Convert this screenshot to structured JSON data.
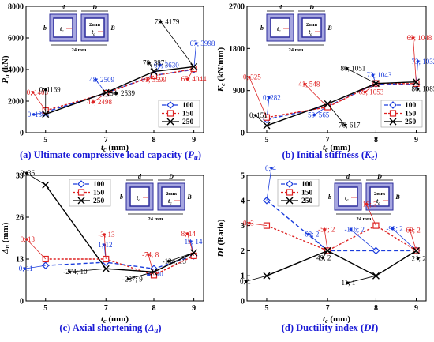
{
  "colors": {
    "s100": "#1a3cdc",
    "s150": "#dd2222",
    "s250": "#000000",
    "caption": "#1a1ad6",
    "inset_outer": "#a6a6e0",
    "inset_inner": "#2a2a9a",
    "inset_fill": "#c9ccee"
  },
  "inset": {
    "d": "d",
    "D": "D",
    "b": "b",
    "B": "B",
    "tc": "t",
    "tc_sub": "c",
    "two_mm": "2mm",
    "width": "24 mm"
  },
  "legend": [
    "100",
    "150",
    "250"
  ],
  "chart_data": [
    {
      "type": "line",
      "caption": "(a) Ultimate compressive load capacity (",
      "caption_var": "P",
      "caption_sub": "u",
      "caption_end": ")",
      "xlabel": "t",
      "xlabel_sub": "c",
      "xlabel_unit": " (mm)",
      "ylabel": "P",
      "ylabel_sub": "u",
      "ylabel_unit": " (kN)",
      "x": [
        5,
        7,
        8,
        9
      ],
      "ylim": [
        0,
        8000
      ],
      "yticks": [
        0,
        2000,
        4000,
        6000,
        8000
      ],
      "ytick_labels": [
        "0",
        "2000",
        "4000",
        "6000",
        "8000"
      ],
      "series": [
        {
          "name": "100",
          "values": [
            1306,
            2509,
            3630,
            3998
          ],
          "labels": [
            "0; 1306",
            "48; 2509",
            "64; 3630",
            "67; 3998"
          ]
        },
        {
          "name": "150",
          "values": [
            1403,
            2498,
            3599,
            4044
          ],
          "labels": [
            "0; 1403",
            "44; 2498",
            "61; 3599",
            "65; 4044"
          ]
        },
        {
          "name": "250",
          "values": [
            1169,
            2539,
            3871,
            4179
          ],
          "labels": [
            "0; 1169",
            "54; 2539",
            "70; 3871",
            "72; 4179"
          ]
        }
      ]
    },
    {
      "type": "line",
      "caption": "(b) Initial stiffness (",
      "caption_var": "K",
      "caption_sub": "e",
      "caption_end": ")",
      "xlabel": "t",
      "xlabel_sub": "c",
      "xlabel_unit": " (mm)",
      "ylabel": "K",
      "ylabel_sub": "e",
      "ylabel_unit": " (kN/mm)",
      "x": [
        5,
        7,
        8,
        9
      ],
      "ylim": [
        0,
        2700
      ],
      "yticks": [
        0,
        900,
        1800,
        2700
      ],
      "ytick_labels": [
        "0",
        "900",
        "1800",
        "2700"
      ],
      "series": [
        {
          "name": "100",
          "values": [
            282,
            565,
            1043,
            1032
          ],
          "labels": [
            "0; 282",
            "50; 565",
            "73; 1043",
            "73; 1032"
          ]
        },
        {
          "name": "150",
          "values": [
            325,
            548,
            1053,
            1048
          ],
          "labels": [
            "0; 325",
            "41; 548",
            "69; 1053",
            "69; 1048"
          ]
        },
        {
          "name": "250",
          "values": [
            151,
            617,
            1051,
            1085
          ],
          "labels": [
            "0; 151",
            "76; 617",
            "86; 1051",
            "86; 1085"
          ]
        }
      ]
    },
    {
      "type": "line",
      "caption": "(c) Axial shortening (",
      "caption_var": "Δ",
      "caption_sub": "u",
      "caption_end": ")",
      "xlabel": "t",
      "xlabel_sub": "c",
      "xlabel_unit": " (mm)",
      "ylabel": "Δ",
      "ylabel_sub": "u",
      "ylabel_unit": " (mm)",
      "x": [
        5,
        7,
        8,
        9
      ],
      "ylim": [
        0,
        39
      ],
      "yticks": [
        0,
        13,
        26,
        39
      ],
      "ytick_labels": [
        "0",
        "13",
        "26",
        "39"
      ],
      "series": [
        {
          "name": "100",
          "values": [
            11,
            12,
            10,
            14
          ],
          "labels": [
            "0; 11",
            "1; 12",
            "-12; 10",
            "19; 14"
          ]
        },
        {
          "name": "150",
          "values": [
            13,
            13,
            8,
            14
          ],
          "labels": [
            "0; 13",
            "-3; 13",
            "-74; 8",
            "8; 14"
          ]
        },
        {
          "name": "250",
          "values": [
            36,
            10,
            9,
            15
          ],
          "labels": [
            "0; 36",
            "-274; 10",
            "-287; 9",
            "-134; 15"
          ]
        }
      ]
    },
    {
      "type": "line",
      "caption": "(d) Ductility index (",
      "caption_var": "DI",
      "caption_sub": "",
      "caption_end": ")",
      "xlabel": "t",
      "xlabel_sub": "c",
      "xlabel_unit": " (mm)",
      "ylabel": "DI",
      "ylabel_sub": "",
      "ylabel_unit": " (Ratio)",
      "x": [
        5,
        7,
        8,
        9
      ],
      "ylim": [
        0,
        5
      ],
      "yticks": [
        0,
        1,
        2,
        3,
        4,
        5
      ],
      "ytick_labels": [
        "0",
        "1",
        "2",
        "3",
        "4",
        "5"
      ],
      "series": [
        {
          "name": "100",
          "values": [
            4,
            2,
            2,
            2
          ],
          "labels": [
            "0; 4",
            "-68; 2",
            "-116; 2",
            "-98; 2"
          ]
        },
        {
          "name": "150",
          "values": [
            3,
            2,
            3,
            2
          ],
          "labels": [
            "0; 3",
            "-57; 2",
            "-18; 3",
            "-69; 2"
          ]
        },
        {
          "name": "250",
          "values": [
            1,
            2,
            1,
            2
          ],
          "labels": [
            "0; 1",
            "49; 2",
            "11; 1",
            "21; 2"
          ]
        }
      ]
    }
  ]
}
